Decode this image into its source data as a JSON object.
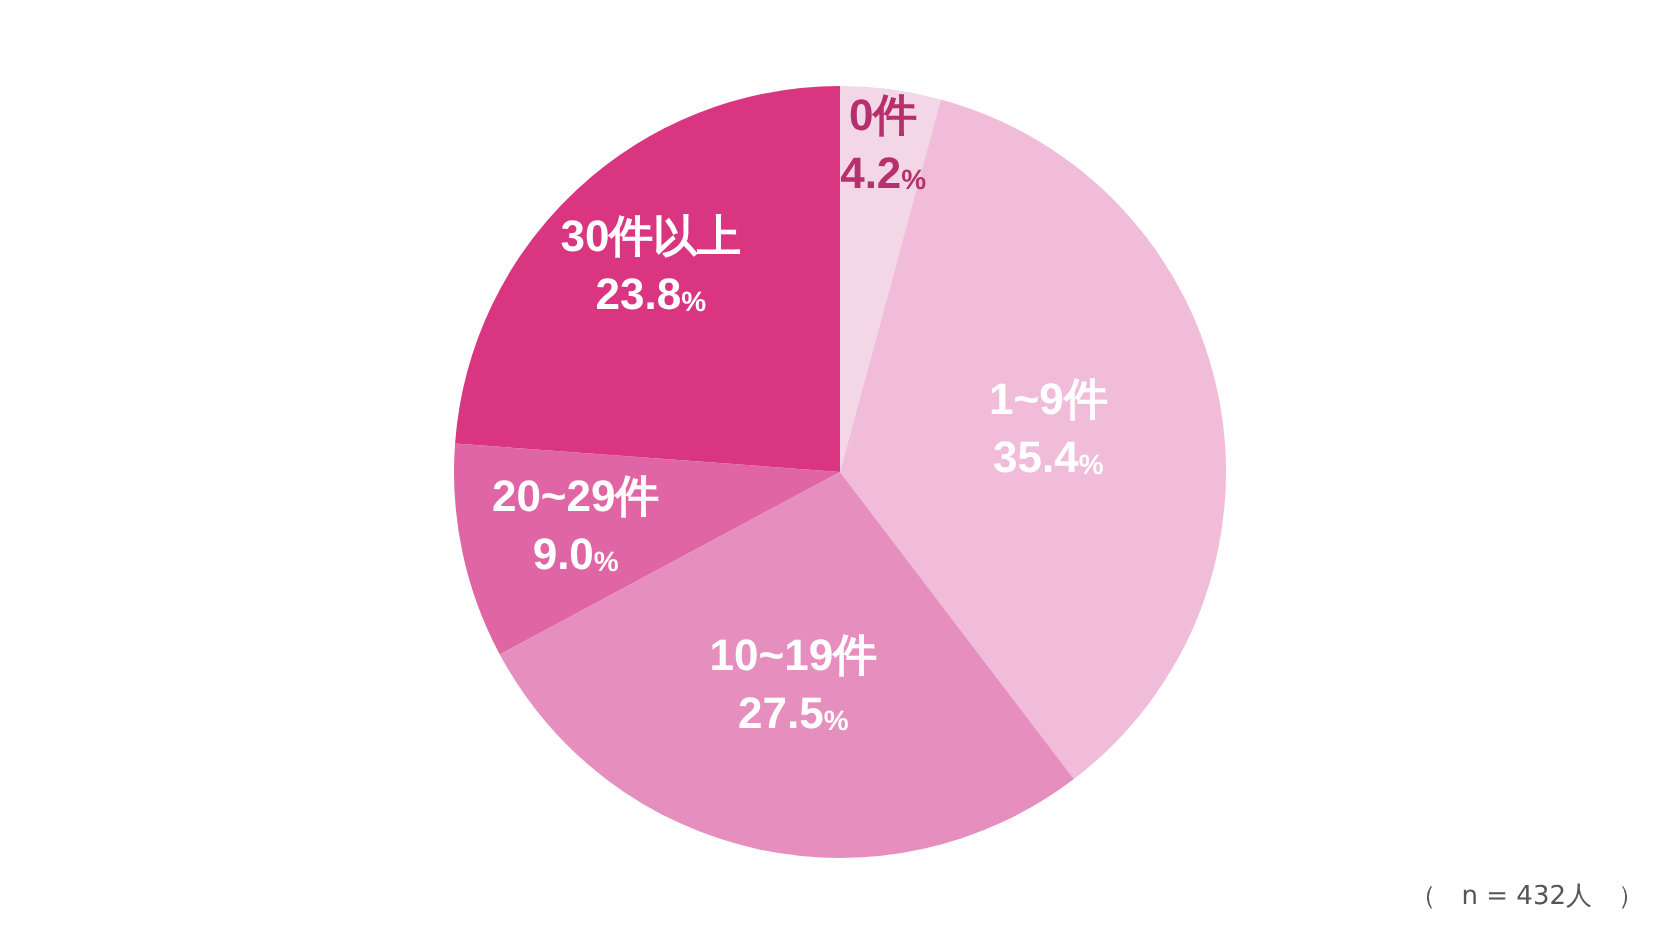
{
  "chart_data": {
    "type": "pie",
    "categories": [
      "0件",
      "1~9件",
      "10~19件",
      "20~29件",
      "30件以上"
    ],
    "values": [
      4.2,
      35.4,
      27.5,
      9.0,
      23.8
    ],
    "colors": [
      "#f4d7e6",
      "#f0bcd9",
      "#e68fbf",
      "#df65a4",
      "#d93580"
    ],
    "value_labels": [
      "4.2%",
      "35.4%",
      "27.5%",
      "9.0%",
      "23.8%"
    ],
    "annotations": [
      "（　n = 432人　）"
    ]
  }
}
